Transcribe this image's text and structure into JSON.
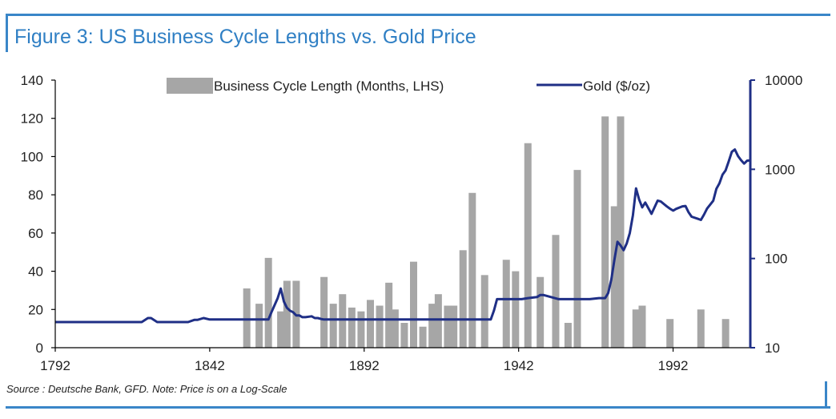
{
  "title": "Figure 3: US Business Cycle Lengths vs. Gold Price",
  "source": "Source : Deutsche Bank, GFD. Note: Price is on a Log-Scale",
  "colors": {
    "accent": "#3a86c8",
    "bar": "#a6a6a6",
    "line": "#1f2f86"
  },
  "chart_data": {
    "type": "bar+line",
    "title": "Figure 3: US Business Cycle Lengths vs. Gold Price",
    "xlim": [
      1792,
      2017
    ],
    "xticks": [
      1792,
      1842,
      1892,
      1942,
      1992
    ],
    "y_left": {
      "range": [
        0,
        140
      ],
      "ticks": [
        0,
        20,
        40,
        60,
        80,
        100,
        120,
        140
      ]
    },
    "y_right": {
      "scale": "log",
      "range": [
        10,
        10000
      ],
      "ticks": [
        10,
        100,
        1000,
        10000
      ]
    },
    "legend": {
      "placement": "top",
      "entries": [
        "Business Cycle Length (Months, LHS)",
        "Gold ($/oz)"
      ]
    },
    "grid": false,
    "series": [
      {
        "name": "Business Cycle Length (Months, LHS)",
        "type": "bar",
        "axis": "left",
        "x": [
          1854,
          1858,
          1861,
          1865,
          1867,
          1870,
          1879,
          1882,
          1885,
          1888,
          1891,
          1894,
          1897,
          1900,
          1902,
          1905,
          1908,
          1911,
          1914,
          1916,
          1919,
          1921,
          1924,
          1927,
          1931,
          1938,
          1941,
          1945,
          1949,
          1954,
          1958,
          1961,
          1970,
          1973,
          1975,
          1980,
          1982,
          1991,
          2001,
          2009
        ],
        "values": [
          31,
          23,
          47,
          19,
          35,
          35,
          37,
          23,
          28,
          21,
          19,
          25,
          22,
          34,
          20,
          13,
          45,
          11,
          23,
          28,
          22,
          22,
          51,
          81,
          38,
          46,
          40,
          107,
          37,
          59,
          13,
          93,
          121,
          74,
          121,
          20,
          22,
          15,
          20,
          15
        ]
      },
      {
        "name": "Gold ($/oz)",
        "type": "line",
        "axis": "right",
        "x": [
          1792,
          1820,
          1822,
          1823,
          1825,
          1826,
          1835,
          1837,
          1838,
          1840,
          1842,
          1848,
          1855,
          1860,
          1861,
          1862,
          1863,
          1864,
          1865,
          1866,
          1867,
          1868,
          1869,
          1870,
          1871,
          1872,
          1873,
          1875,
          1876,
          1877,
          1878,
          1879,
          1880,
          1890,
          1900,
          1910,
          1920,
          1933,
          1934,
          1935,
          1940,
          1943,
          1945,
          1948,
          1949,
          1950,
          1955,
          1960,
          1965,
          1968,
          1970,
          1971,
          1972,
          1973,
          1974,
          1975,
          1976,
          1977,
          1978,
          1979,
          1980,
          1981,
          1982,
          1983,
          1985,
          1987,
          1988,
          1990,
          1991,
          1992,
          1993,
          1995,
          1996,
          1997,
          1998,
          2000,
          2001,
          2002,
          2003,
          2005,
          2006,
          2007,
          2008,
          2009,
          2010,
          2011,
          2012,
          2013,
          2014,
          2015,
          2016,
          2017
        ],
        "values": [
          19.4,
          19.4,
          21.5,
          21.5,
          19.4,
          19.4,
          19.4,
          20.5,
          20.5,
          21.5,
          20.7,
          20.7,
          20.7,
          20.7,
          20.7,
          25,
          30,
          36,
          46,
          33,
          28,
          26,
          25,
          23,
          23,
          22,
          22,
          22.5,
          21.5,
          21.5,
          21,
          20.7,
          20.7,
          20.7,
          20.7,
          20.7,
          20.7,
          20.7,
          26,
          35,
          35,
          35,
          36,
          37,
          39,
          39,
          35,
          35,
          35,
          36,
          36,
          41,
          58,
          97,
          154,
          140,
          124,
          148,
          193,
          306,
          612,
          460,
          375,
          424,
          317,
          446,
          437,
          383,
          362,
          344,
          360,
          384,
          388,
          331,
          294,
          279,
          271,
          310,
          363,
          444,
          604,
          695,
          872,
          972,
          1225,
          1572,
          1669,
          1411,
          1266,
          1160,
          1251,
          1257
        ]
      }
    ]
  }
}
